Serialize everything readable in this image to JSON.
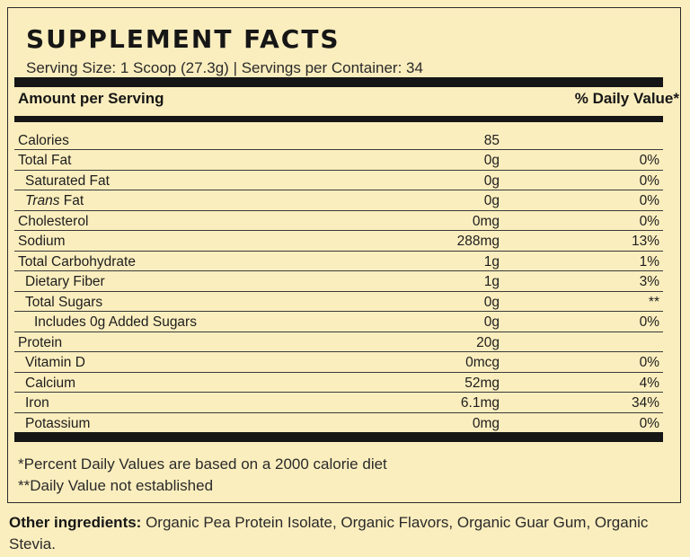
{
  "title": "SUPPLEMENT FACTS",
  "serving": "Serving Size: 1 Scoop (27.3g) | Servings per Container: 34",
  "header": {
    "amount": "Amount per Serving",
    "dv": "% Daily Value*"
  },
  "rows": [
    {
      "name": "Calories",
      "amount": "85",
      "dv": ""
    },
    {
      "name": "Total Fat",
      "amount": "0g",
      "dv": "0%"
    },
    {
      "name": "Saturated Fat",
      "amount": "0g",
      "dv": "0%"
    },
    {
      "name_italic": "Trans",
      "name": " Fat",
      "amount": "0g",
      "dv": "0%"
    },
    {
      "name": "Cholesterol",
      "amount": "0mg",
      "dv": "0%"
    },
    {
      "name": "Sodium",
      "amount": "288mg",
      "dv": "13%"
    },
    {
      "name": "Total Carbohydrate",
      "amount": "1g",
      "dv": "1%"
    },
    {
      "name": "Dietary Fiber",
      "amount": "1g",
      "dv": "3%"
    },
    {
      "name": "Total Sugars",
      "amount": "0g",
      "dv": "**"
    },
    {
      "name": "Includes 0g Added Sugars",
      "amount": "0g",
      "dv": "0%"
    },
    {
      "name": "Protein",
      "amount": "20g",
      "dv": ""
    },
    {
      "name": "Vitamin D",
      "amount": "0mcg",
      "dv": "0%"
    },
    {
      "name": "Calcium",
      "amount": "52mg",
      "dv": "4%"
    },
    {
      "name": "Iron",
      "amount": "6.1mg",
      "dv": "34%"
    },
    {
      "name": "Potassium",
      "amount": "0mg",
      "dv": "0%"
    }
  ],
  "footnotes": {
    "dv": "*Percent Daily Values are based on a 2000 calorie diet",
    "na": "**Daily Value not established"
  },
  "ingredients": {
    "label": "Other ingredients:",
    "text": " Organic Pea Protein Isolate, Organic Flavors, Organic Guar Gum, Organic Stevia."
  }
}
